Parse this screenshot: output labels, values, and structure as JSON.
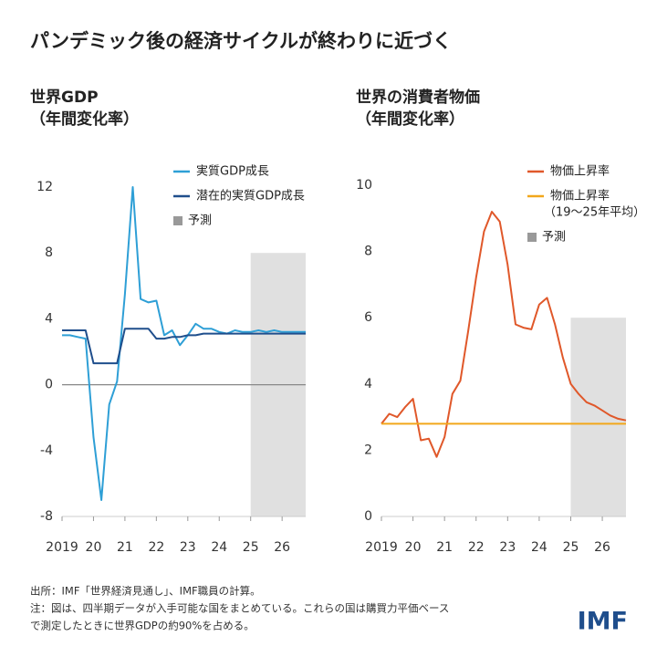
{
  "title": "パンデミック後の経済サイクルが終わりに近づく",
  "notes": [
    "出所：IMF「世界経済見通し」、IMF職員の計算。",
    "注：図は、四半期データが入手可能な国をまとめている。これらの国は購買力平価ベース",
    "で測定したときに世界GDPの約90%を占める。"
  ],
  "logo": "IMF",
  "chart_data": [
    {
      "type": "line",
      "title": "世界GDP",
      "subtitle": "（年間変化率）",
      "x": [
        2019,
        2019.25,
        2019.5,
        2019.75,
        2020,
        2020.25,
        2020.5,
        2020.75,
        2021,
        2021.25,
        2021.5,
        2021.75,
        2022,
        2022.25,
        2022.5,
        2022.75,
        2023,
        2023.25,
        2023.5,
        2023.75,
        2024,
        2024.25,
        2024.5,
        2024.75,
        2025,
        2025.25,
        2025.5,
        2025.75,
        2026,
        2026.25,
        2026.5,
        2026.75
      ],
      "series": [
        {
          "name": "実質GDP成長",
          "color": "#2e9fd6",
          "values": [
            3.0,
            3.0,
            2.9,
            2.8,
            -3.2,
            -7.0,
            -1.2,
            0.2,
            5.5,
            12.0,
            5.2,
            5.0,
            5.1,
            3.0,
            3.3,
            2.4,
            3.0,
            3.7,
            3.4,
            3.4,
            3.2,
            3.1,
            3.3,
            3.2,
            3.2,
            3.3,
            3.2,
            3.3,
            3.2,
            3.2,
            3.2,
            3.2
          ]
        },
        {
          "name": "潜在的実質GDP成長",
          "color": "#1f4e8c",
          "values": [
            3.3,
            3.3,
            3.3,
            3.3,
            1.3,
            1.3,
            1.3,
            1.3,
            3.4,
            3.4,
            3.4,
            3.4,
            2.8,
            2.8,
            2.9,
            2.9,
            3.0,
            3.0,
            3.1,
            3.1,
            3.1,
            3.1,
            3.1,
            3.1,
            3.1,
            3.1,
            3.1,
            3.1,
            3.1,
            3.1,
            3.1,
            3.1
          ]
        }
      ],
      "forecast": {
        "label": "予測",
        "color": "#e0e0e0",
        "x": [
          2025,
          2026.75
        ],
        "y": [
          -8,
          8
        ]
      },
      "xlim": [
        2019,
        2026.75
      ],
      "xticks": [
        2019,
        {
          "value": 2020,
          "label": "20"
        },
        {
          "value": 2021,
          "label": "21"
        },
        {
          "value": 2022,
          "label": "22"
        },
        {
          "value": 2023,
          "label": "23"
        },
        {
          "value": 2024,
          "label": "24"
        },
        {
          "value": 2025,
          "label": "25"
        },
        {
          "value": 2026,
          "label": "26"
        }
      ],
      "ylim": [
        -8,
        12
      ],
      "yticks": [
        -8,
        -4,
        0,
        4,
        8,
        12
      ],
      "zero_line": true
    },
    {
      "type": "line",
      "title": "世界の消費者物価",
      "subtitle": "（年間変化率）",
      "x": [
        2019,
        2019.25,
        2019.5,
        2019.75,
        2020,
        2020.25,
        2020.5,
        2020.75,
        2021,
        2021.25,
        2021.5,
        2021.75,
        2022,
        2022.25,
        2022.5,
        2022.75,
        2023,
        2023.25,
        2023.5,
        2023.75,
        2024,
        2024.25,
        2024.5,
        2024.75,
        2025,
        2025.25,
        2025.5,
        2025.75,
        2026,
        2026.25,
        2026.5,
        2026.75
      ],
      "series": [
        {
          "name": "物価上昇率",
          "color": "#e0582a",
          "values": [
            2.8,
            3.1,
            3.0,
            3.3,
            3.55,
            2.3,
            2.35,
            1.8,
            2.4,
            3.7,
            4.1,
            5.6,
            7.2,
            8.6,
            9.2,
            8.9,
            7.6,
            5.8,
            5.7,
            5.65,
            6.4,
            6.6,
            5.8,
            4.8,
            4.0,
            3.7,
            3.45,
            3.35,
            3.2,
            3.05,
            2.95,
            2.9
          ]
        },
        {
          "name": "物価上昇率",
          "subname": "（19～25年平均）",
          "color": "#f2a71b",
          "x": [
            2019,
            2026.75
          ],
          "values": [
            2.8,
            2.8
          ]
        }
      ],
      "forecast": {
        "label": "予測",
        "color": "#e0e0e0",
        "x": [
          2025,
          2026.75
        ],
        "y": [
          0,
          6
        ]
      },
      "xlim": [
        2019,
        2026.75
      ],
      "xticks": [
        2019,
        {
          "value": 2020,
          "label": "20"
        },
        {
          "value": 2021,
          "label": "21"
        },
        {
          "value": 2022,
          "label": "22"
        },
        {
          "value": 2023,
          "label": "23"
        },
        {
          "value": 2024,
          "label": "24"
        },
        {
          "value": 2025,
          "label": "25"
        },
        {
          "value": 2026,
          "label": "26"
        }
      ],
      "ylim": [
        0,
        10
      ],
      "yticks": [
        0,
        2,
        4,
        6,
        8,
        10
      ],
      "zero_line": false
    }
  ]
}
